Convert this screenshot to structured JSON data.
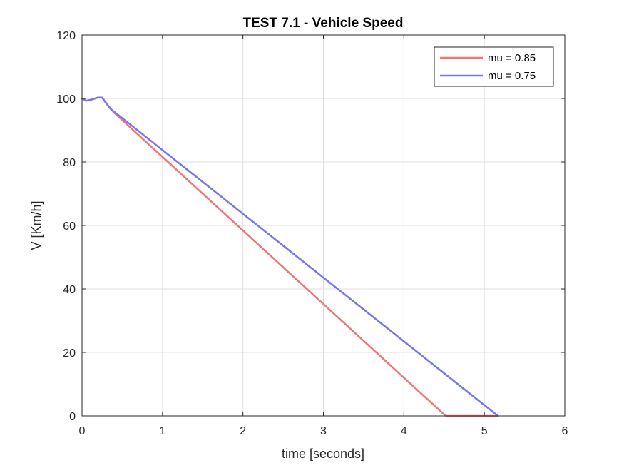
{
  "chart_data": {
    "type": "line",
    "title": "TEST 7.1 - Vehicle Speed",
    "xlabel": "time [seconds]",
    "ylabel": "V [Km/h]",
    "xlim": [
      0,
      6
    ],
    "ylim": [
      0,
      120
    ],
    "xticks": [
      "0",
      "1",
      "2",
      "3",
      "4",
      "5",
      "6"
    ],
    "yticks": [
      "0",
      "20",
      "40",
      "60",
      "80",
      "100",
      "120"
    ],
    "grid": true,
    "legend_position": "top-right",
    "series": [
      {
        "name": "mu = 0.85",
        "color": "#f07575",
        "x": [
          0,
          0.05,
          0.1,
          0.15,
          0.2,
          0.25,
          0.3,
          0.4,
          4.52,
          5.17
        ],
        "y": [
          100,
          99.3,
          99.5,
          99.9,
          100.3,
          100.3,
          98.5,
          95.5,
          0,
          0
        ]
      },
      {
        "name": "mu = 0.75",
        "color": "#7575f0",
        "x": [
          0,
          0.05,
          0.1,
          0.15,
          0.2,
          0.25,
          0.3,
          0.35,
          5.17
        ],
        "y": [
          100,
          99.3,
          99.5,
          99.9,
          100.3,
          100.3,
          98.6,
          96.8,
          0
        ]
      }
    ]
  }
}
